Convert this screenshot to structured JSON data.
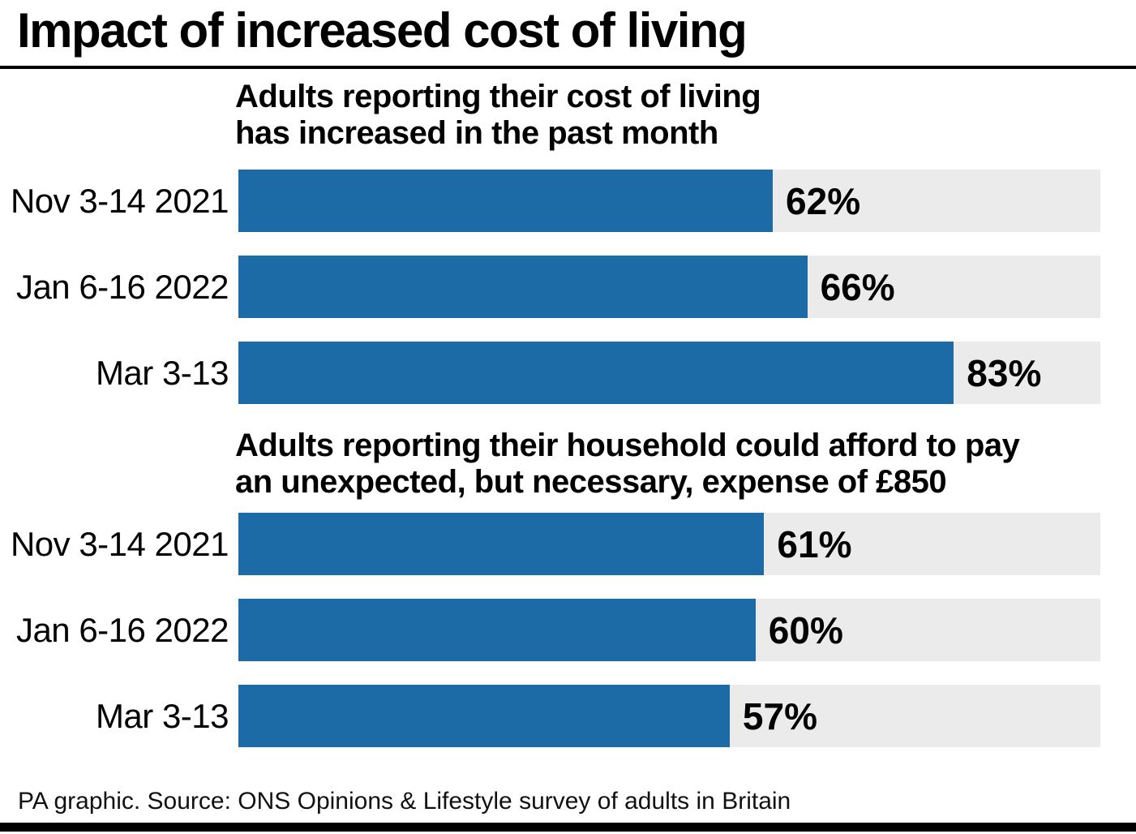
{
  "title": "Impact of increased cost of living",
  "colors": {
    "bar": "#1d6ba6",
    "track": "#ebebeb",
    "rule": "#000000"
  },
  "chart_data": [
    {
      "type": "bar",
      "orientation": "horizontal",
      "title": "Adults reporting their cost of living\nhas increased in the past month",
      "categories": [
        "Nov 3-14 2021",
        "Jan 6-16 2022",
        "Mar 3-13"
      ],
      "values": [
        62,
        66,
        83
      ],
      "value_labels": [
        "62%",
        "66%",
        "83%"
      ],
      "xlim": [
        0,
        100
      ],
      "grid": false,
      "legend": false
    },
    {
      "type": "bar",
      "orientation": "horizontal",
      "title": "Adults reporting their household could afford to pay\nan unexpected, but necessary, expense of £850",
      "categories": [
        "Nov 3-14 2021",
        "Jan 6-16 2022",
        "Mar 3-13"
      ],
      "values": [
        61,
        60,
        57
      ],
      "value_labels": [
        "61%",
        "60%",
        "57%"
      ],
      "xlim": [
        0,
        100
      ],
      "grid": false,
      "legend": false
    }
  ],
  "footer": {
    "source": "PA graphic. Source: ONS Opinions & Lifestyle survey of adults in Britain"
  }
}
